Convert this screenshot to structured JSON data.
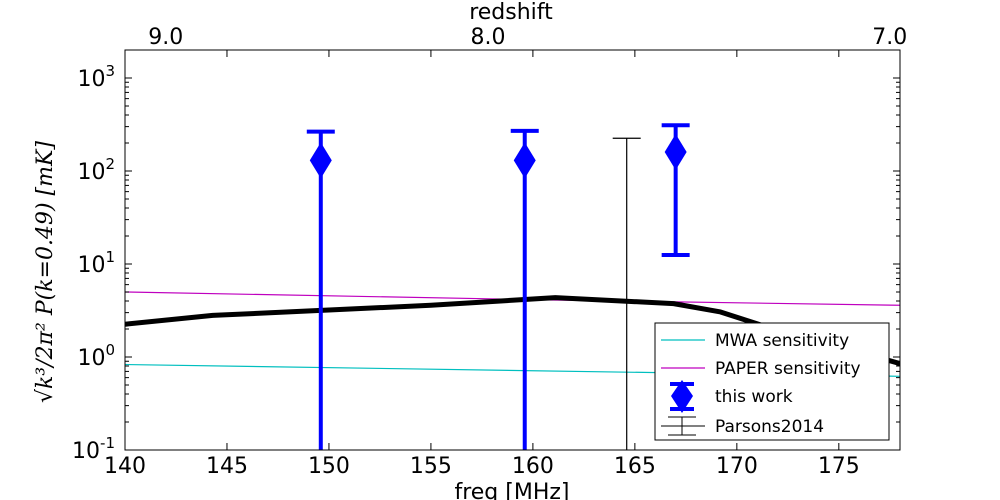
{
  "chart_data": {
    "type": "line",
    "xlabel": "freq [MHz]",
    "ylabel": "√k³/2π² P(k=0.49)   [mK]",
    "top_axis_label": "redshift",
    "xlim": [
      140,
      178
    ],
    "ylim": [
      0.1,
      2000
    ],
    "yscale": "log",
    "x_ticks": [
      140,
      145,
      150,
      155,
      160,
      165,
      170,
      175
    ],
    "x_tick_labels": [
      "140",
      "145",
      "150",
      "155",
      "160",
      "165",
      "170",
      "175"
    ],
    "y_ticks": [
      0.1,
      1,
      10,
      100,
      1000
    ],
    "y_tick_labels": [
      {
        "base": "10",
        "exp": "-1"
      },
      {
        "base": "10",
        "exp": "0"
      },
      {
        "base": "10",
        "exp": "1"
      },
      {
        "base": "10",
        "exp": "2"
      },
      {
        "base": "10",
        "exp": "3"
      }
    ],
    "top_ticks": [
      {
        "label": "9.0",
        "freq": 142.0
      },
      {
        "label": "8.0",
        "freq": 157.8
      },
      {
        "label": "7.0",
        "freq": 177.5
      }
    ],
    "grid": false,
    "legend_position": "lower-right",
    "series": [
      {
        "name": "MWA sensitivity",
        "color": "#00bfbf",
        "style": "line",
        "x": [
          140,
          178
        ],
        "y": [
          0.83,
          0.62
        ]
      },
      {
        "name": "PAPER sensitivity",
        "color": "#bf00bf",
        "style": "line",
        "x": [
          140,
          161,
          178
        ],
        "y": [
          5.0,
          4.1,
          3.6
        ]
      },
      {
        "name": "",
        "color": "#000000",
        "style": "thick-line",
        "x": [
          140,
          144.3,
          150,
          155,
          161.1,
          166.9,
          169.2,
          171.2,
          178
        ],
        "y": [
          2.25,
          2.8,
          3.2,
          3.6,
          4.35,
          3.75,
          3.05,
          2.2,
          0.85
        ]
      },
      {
        "name": "this work",
        "color": "#0000ff",
        "style": "errorbar-diamond",
        "points": [
          {
            "x": 149.6,
            "y": 130,
            "lower": 0.1,
            "upper": 265
          },
          {
            "x": 159.6,
            "y": 130,
            "lower": 0.1,
            "upper": 270
          },
          {
            "x": 167.0,
            "y": 160,
            "lower": 12.5,
            "upper": 310
          }
        ]
      },
      {
        "name": "Parsons2014",
        "color": "#000000",
        "style": "errorbar",
        "points": [
          {
            "x": 164.6,
            "lower": 0.1,
            "upper": 225
          }
        ]
      }
    ]
  }
}
